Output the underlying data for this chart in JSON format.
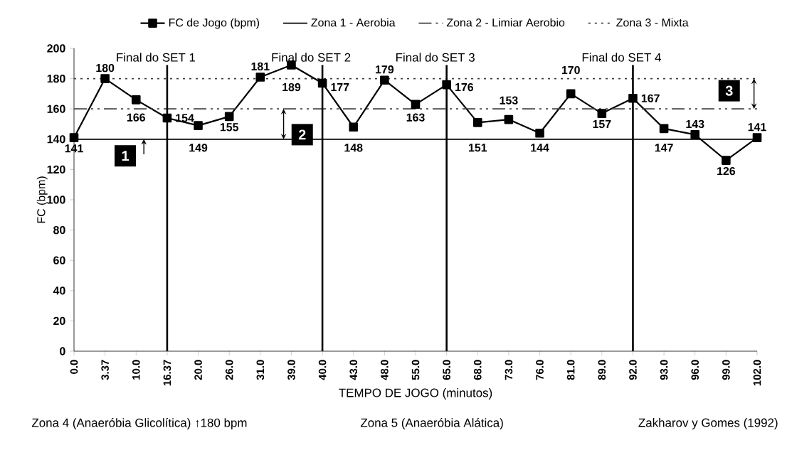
{
  "chart_data": {
    "type": "line",
    "xlabel": "TEMPO DE JOGO (minutos)",
    "ylabel": "FC (bpm)",
    "categories": [
      "0.0",
      "3.37",
      "10.0",
      "16.37",
      "20.0",
      "26.0",
      "31.0",
      "39.0",
      "40.0",
      "43.0",
      "48.0",
      "55.0",
      "65.0",
      "68.0",
      "73.0",
      "76.0",
      "81.0",
      "89.0",
      "92.0",
      "93.0",
      "96.0",
      "99.0",
      "102.0"
    ],
    "series": [
      {
        "name": "FC de Jogo (bpm)",
        "color": "#000000",
        "values": [
          141,
          180,
          166,
          154,
          149,
          155,
          181,
          189,
          177,
          148,
          179,
          163,
          176,
          151,
          153,
          144,
          170,
          157,
          167,
          147,
          143,
          126,
          141
        ]
      }
    ],
    "ylim": [
      0,
      200
    ],
    "yticks": [
      0,
      20,
      40,
      60,
      80,
      100,
      120,
      140,
      160,
      180,
      200
    ],
    "marker": "square",
    "line_style": "solid",
    "data_labels": true,
    "legend": "top",
    "ref_lines": [
      {
        "axis": "y",
        "value": 140,
        "label": "Zona 1 - Aerobia",
        "line_style": "solid",
        "color": "#000000"
      },
      {
        "axis": "y",
        "value": 160,
        "label": "Zona 2 - Limiar Aerobio",
        "line_style": "dashed",
        "color": "#404040"
      },
      {
        "axis": "y",
        "value": 180,
        "label": "Zona 3 - Mixta",
        "line_style": "dotted",
        "color": "#404040"
      },
      {
        "axis": "x",
        "value": "16.37",
        "label": "Final do SET 1",
        "color": "#000000"
      },
      {
        "axis": "x",
        "value": "40.0",
        "label": "Final do SET 2",
        "color": "#000000"
      },
      {
        "axis": "x",
        "value": "65.0",
        "label": "Final do SET 3",
        "color": "#000000"
      },
      {
        "axis": "x",
        "value": "92.0",
        "label": "Final do SET 4",
        "color": "#000000"
      }
    ],
    "annotations": [
      "1",
      "2",
      "3",
      "Zona 4 (Anaeróbia Glicolítica) ↑180 bpm",
      "Zona 5 (Anaeróbia Alática)",
      "Zakharov y Gomes (1992)"
    ]
  }
}
